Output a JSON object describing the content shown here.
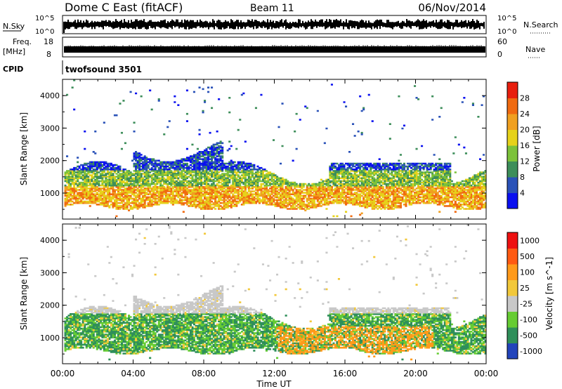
{
  "header": {
    "title": "Dome C East (fitACF)",
    "beam": "Beam 11",
    "date": "06/Nov/2014"
  },
  "noise_panel": {
    "left_label": "N.Sky",
    "right_label": "N.Search",
    "ticks_top": "10^5",
    "ticks_bottom": "10^0"
  },
  "freq_panel": {
    "left_label_1": "Freq.",
    "left_label_2": "[MHz]",
    "left_tick_top": "18",
    "left_tick_bottom": "8",
    "right_tick_top": "60",
    "right_tick_bottom": "0",
    "right_label": "Nave"
  },
  "cpid_panel": {
    "label": "CPID",
    "text": "twofsound 3501"
  },
  "colors": {
    "scale": [
      "#0a10f0",
      "#2a52b8",
      "#3d8e5a",
      "#7cc23a",
      "#e6d21a",
      "#f0a020",
      "#f06a10",
      "#e81e0e"
    ],
    "velocity": [
      "#ee1111",
      "#ff5a12",
      "#ff9a1a",
      "#f2c83a",
      "#c8c8c8",
      "#66cc33",
      "#2f8f5a",
      "#2244bb"
    ]
  },
  "chart_data": [
    {
      "type": "heatmap",
      "ylabel": "Slant Range [km]",
      "ylim": [
        200,
        4500
      ],
      "y_ticks": [
        "1000",
        "2000",
        "3000",
        "4000"
      ],
      "xlim": [
        0,
        24
      ],
      "x_ticks": [
        "00:00",
        "04:00",
        "08:00",
        "12:00",
        "16:00",
        "20:00",
        "00:00"
      ],
      "colorbar": {
        "label": "Power [dB]",
        "ticks": [
          "4",
          "8",
          "12",
          "16",
          "20",
          "24",
          "28"
        ]
      }
    },
    {
      "type": "heatmap",
      "ylabel": "Slant Range [km]",
      "ylim": [
        200,
        4500
      ],
      "y_ticks": [
        "1000",
        "2000",
        "3000",
        "4000"
      ],
      "xlim": [
        0,
        24
      ],
      "x_ticks": [
        "00:00",
        "04:00",
        "08:00",
        "12:00",
        "16:00",
        "20:00",
        "00:00"
      ],
      "xlabel": "Time UT",
      "colorbar": {
        "label": "Velocity [m s^-1]",
        "ticks": [
          "1000",
          "500",
          "100",
          "25",
          "-25",
          "-100",
          "-500",
          "-1000"
        ]
      }
    }
  ]
}
